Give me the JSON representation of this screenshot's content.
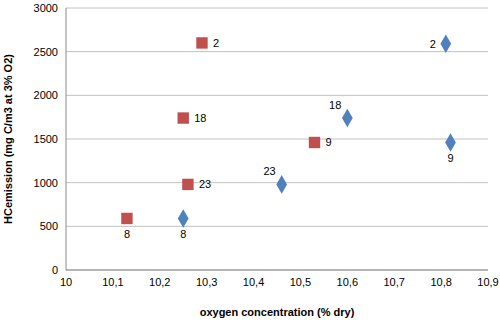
{
  "chart_data": {
    "type": "scatter",
    "x_label": "oxygen concentration (% dry)",
    "y_label": "HCemission (mg C/m3 at 3% O2)",
    "xlim": [
      10,
      10.9
    ],
    "xticks": [
      10,
      {
        "value": 10.1,
        "label": "10,1"
      },
      {
        "value": 10.2,
        "label": "10,2"
      },
      {
        "value": 10.3,
        "label": "10,3"
      },
      {
        "value": 10.4,
        "label": "10,4"
      },
      {
        "value": 10.5,
        "label": "10,5"
      },
      {
        "value": 10.6,
        "label": "10,6"
      },
      {
        "value": 10.7,
        "label": "10,7"
      },
      {
        "value": 10.8,
        "label": "10,8"
      },
      {
        "value": 10.9,
        "label": "10,9"
      }
    ],
    "ylim": [
      0,
      3000
    ],
    "yticks": [
      0,
      500,
      1000,
      1500,
      2000,
      2500,
      3000
    ],
    "grid": true,
    "series": [
      {
        "color": "#c0504d",
        "marker": "square",
        "x": [
          10.29,
          10.25,
          10.26,
          10.13,
          10.53
        ],
        "values": [
          2600,
          1740,
          980,
          590,
          1460
        ],
        "point_labels": [
          "2",
          "18",
          "23",
          "8",
          "9"
        ]
      },
      {
        "color": "#4f81bd",
        "marker": "diamond",
        "x": [
          10.81,
          10.6,
          10.82,
          10.46,
          10.25
        ],
        "values": [
          2590,
          1740,
          1460,
          980,
          590
        ],
        "point_labels": [
          "2",
          "18",
          "9",
          "23",
          "8"
        ]
      }
    ]
  }
}
